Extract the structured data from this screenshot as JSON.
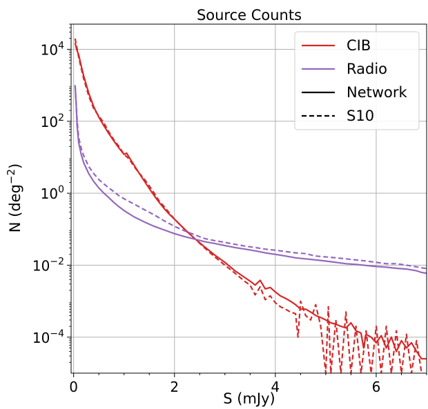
{
  "chart_data": {
    "type": "line",
    "title": "Source Counts",
    "xlabel": "S (mJy)",
    "ylabel": "N (deg",
    "ylabel_exp": "−2",
    "ylabel_close": ")",
    "xlim": [
      -0.05,
      7.0
    ],
    "ylim": [
      1e-05,
      50000
    ],
    "yscale": "log",
    "xticks": [
      {
        "value": 0,
        "label": "0"
      },
      {
        "value": 2,
        "label": "2"
      },
      {
        "value": 4,
        "label": "4"
      },
      {
        "value": 6,
        "label": "6"
      }
    ],
    "yticks": [
      {
        "value": 10000,
        "base": "10",
        "exp": "4"
      },
      {
        "value": 100,
        "base": "10",
        "exp": "2"
      },
      {
        "value": 1,
        "base": "10",
        "exp": "0"
      },
      {
        "value": 0.01,
        "base": "10",
        "exp": "−2"
      },
      {
        "value": 0.0001,
        "base": "10",
        "exp": "−4"
      }
    ],
    "grid": true,
    "legend_position": "top-right",
    "legend": [
      {
        "label": "CIB",
        "color": "#d62728",
        "style": "solid"
      },
      {
        "label": "Radio",
        "color": "#9467bd",
        "style": "solid"
      },
      {
        "label": "Network",
        "color": "#000000",
        "style": "solid"
      },
      {
        "label": "S10",
        "color": "#000000",
        "style": "dashed"
      }
    ],
    "series": [
      {
        "name": "CIB",
        "variant": "Network",
        "color": "#d62728",
        "style": "solid",
        "x": [
          0.03,
          0.06,
          0.1,
          0.15,
          0.2,
          0.3,
          0.4,
          0.5,
          0.6,
          0.7,
          0.8,
          0.9,
          1.0,
          1.05,
          1.1,
          1.2,
          1.3,
          1.4,
          1.5,
          1.6,
          1.7,
          1.8,
          1.9,
          2.0,
          2.2,
          2.4,
          2.6,
          2.8,
          3.0,
          3.2,
          3.4,
          3.5,
          3.6,
          3.7,
          3.8,
          3.9,
          4.0,
          4.1,
          4.2,
          4.3,
          4.4,
          4.5,
          4.6,
          4.7,
          4.8,
          4.9,
          5.0,
          5.1,
          5.2,
          5.3,
          5.4,
          5.5,
          5.6,
          5.7,
          5.75,
          5.8,
          5.9,
          6.0,
          6.1,
          6.2,
          6.3,
          6.4,
          6.5,
          6.6,
          6.7,
          6.8,
          6.9,
          7.0
        ],
        "y": [
          15000,
          10000,
          7000,
          3500,
          1800,
          600,
          250,
          130,
          75,
          45,
          28,
          18,
          12,
          13,
          10,
          6,
          3.6,
          2.2,
          1.35,
          0.85,
          0.55,
          0.37,
          0.26,
          0.19,
          0.1,
          0.055,
          0.032,
          0.019,
          0.012,
          0.007,
          0.0045,
          0.0036,
          0.0028,
          0.0038,
          0.0022,
          0.0024,
          0.0018,
          0.0014,
          0.0012,
          0.001,
          0.0008,
          0.0006,
          0.0006,
          0.0005,
          0.0004,
          0.00035,
          0.0003,
          0.00025,
          0.00023,
          0.0002,
          0.00018,
          0.00025,
          0.00015,
          0.00013,
          5e-05,
          0.00012,
          0.0001,
          7e-05,
          0.00011,
          5e-05,
          0.0001,
          4e-05,
          8e-05,
          5e-05,
          7e-05,
          4e-05,
          2.5e-05,
          2.5e-05
        ]
      },
      {
        "name": "CIB",
        "variant": "S10",
        "color": "#d62728",
        "style": "dashed",
        "x": [
          0.03,
          0.06,
          0.1,
          0.15,
          0.2,
          0.3,
          0.4,
          0.5,
          0.6,
          0.7,
          0.8,
          0.9,
          1.0,
          1.1,
          1.2,
          1.3,
          1.4,
          1.5,
          1.6,
          1.7,
          1.8,
          1.9,
          2.0,
          2.2,
          2.4,
          2.6,
          2.8,
          3.0,
          3.2,
          3.4,
          3.5,
          3.6,
          3.7,
          3.8,
          3.9,
          4.0,
          4.1,
          4.2,
          4.3,
          4.4,
          4.45,
          4.5,
          4.6,
          4.7,
          4.8,
          4.9,
          5.0,
          5.05,
          5.1,
          5.2,
          5.3,
          5.4,
          5.5,
          5.6,
          5.7,
          5.8,
          5.9,
          6.0,
          6.1,
          6.2,
          6.3,
          6.4,
          6.5,
          6.6,
          6.7,
          6.8,
          6.9
        ],
        "y": [
          20000,
          12000,
          6000,
          3000,
          1500,
          500,
          220,
          140,
          90,
          50,
          30,
          20,
          12,
          9,
          5.5,
          3.6,
          2.5,
          1.6,
          1.0,
          0.6,
          0.42,
          0.28,
          0.19,
          0.1,
          0.055,
          0.03,
          0.017,
          0.01,
          0.006,
          0.0035,
          0.0028,
          0.0015,
          0.0025,
          0.0011,
          0.0014,
          0.0009,
          0.0007,
          0.0006,
          0.0005,
          0.00045,
          0.0001,
          0.001,
          0.0004,
          0.0003,
          0.0008,
          0.0002,
          1e-05,
          0.0007,
          1e-05,
          0.0003,
          1e-05,
          0.0005,
          1e-05,
          0.0002,
          1e-05,
          0.00015,
          1e-05,
          0.0002,
          1e-05,
          0.0002,
          1e-05,
          0.00015,
          1e-05,
          0.00012,
          1e-05,
          8e-05,
          1e-05
        ]
      },
      {
        "name": "Radio",
        "variant": "Network",
        "color": "#9467bd",
        "style": "solid",
        "x": [
          0.03,
          0.05,
          0.07,
          0.1,
          0.15,
          0.2,
          0.3,
          0.4,
          0.5,
          0.6,
          0.7,
          0.8,
          0.9,
          1.0,
          1.2,
          1.4,
          1.6,
          1.8,
          2.0,
          2.2,
          2.4,
          2.6,
          2.8,
          3.0,
          3.2,
          3.4,
          3.6,
          3.8,
          4.0,
          4.2,
          4.4,
          4.6,
          4.8,
          5.0,
          5.2,
          5.4,
          5.6,
          5.8,
          6.0,
          6.2,
          6.4,
          6.6,
          6.8,
          6.9,
          7.0
        ],
        "y": [
          1000,
          300,
          70,
          25,
          12,
          7,
          3.5,
          2.1,
          1.4,
          1.0,
          0.75,
          0.55,
          0.42,
          0.33,
          0.22,
          0.16,
          0.12,
          0.095,
          0.075,
          0.062,
          0.053,
          0.045,
          0.04,
          0.035,
          0.031,
          0.028,
          0.025,
          0.022,
          0.02,
          0.018,
          0.016,
          0.015,
          0.014,
          0.013,
          0.012,
          0.011,
          0.0105,
          0.0098,
          0.0092,
          0.0088,
          0.0082,
          0.0078,
          0.007,
          0.0063,
          0.006
        ]
      },
      {
        "name": "Radio",
        "variant": "S10",
        "color": "#9467bd",
        "style": "dashed",
        "x": [
          0.03,
          0.05,
          0.07,
          0.1,
          0.15,
          0.2,
          0.3,
          0.4,
          0.5,
          0.6,
          0.7,
          0.8,
          0.9,
          1.0,
          1.2,
          1.4,
          1.6,
          1.8,
          2.0,
          2.2,
          2.4,
          2.6,
          2.8,
          3.0,
          3.2,
          3.4,
          3.6,
          3.8,
          4.0,
          4.2,
          4.4,
          4.6,
          4.8,
          5.0,
          5.2,
          5.4,
          5.6,
          5.8,
          6.0,
          6.2,
          6.4,
          6.6,
          6.8,
          6.9,
          7.0
        ],
        "y": [
          1000,
          350,
          100,
          35,
          18,
          11,
          5.5,
          3.5,
          2.4,
          1.8,
          1.4,
          1.1,
          0.85,
          0.7,
          0.5,
          0.35,
          0.25,
          0.17,
          0.12,
          0.09,
          0.07,
          0.055,
          0.048,
          0.043,
          0.038,
          0.034,
          0.031,
          0.028,
          0.026,
          0.024,
          0.022,
          0.021,
          0.018,
          0.017,
          0.016,
          0.015,
          0.014,
          0.013,
          0.012,
          0.011,
          0.011,
          0.01,
          0.009,
          0.0085,
          0.008
        ]
      }
    ]
  }
}
